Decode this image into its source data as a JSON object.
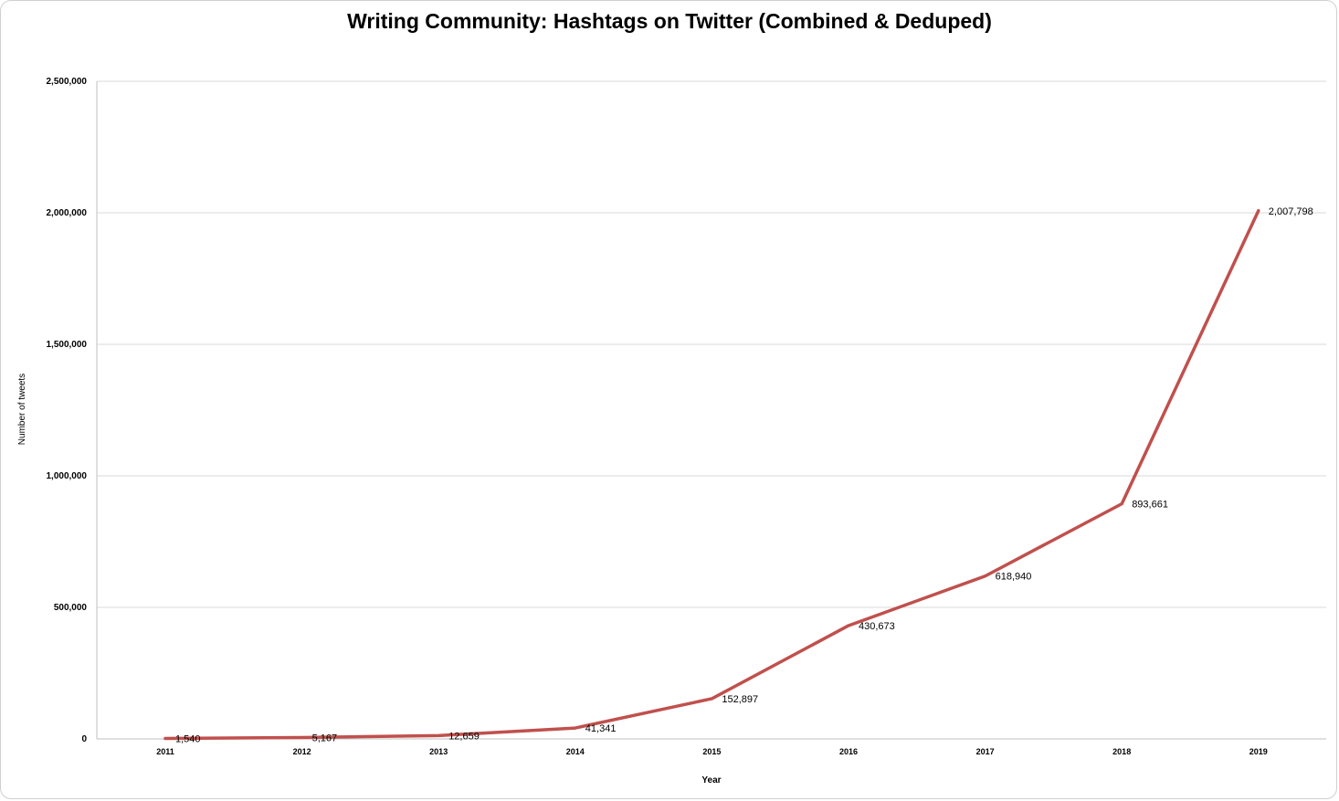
{
  "chart_data": {
    "type": "line",
    "title": "Writing Community: Hashtags on Twitter (Combined & Deduped)",
    "xlabel": "Year",
    "ylabel": "Number of tweets",
    "categories": [
      "2011",
      "2012",
      "2013",
      "2014",
      "2015",
      "2016",
      "2017",
      "2018",
      "2019"
    ],
    "series": [
      {
        "values": [
          1540,
          5167,
          12659,
          41341,
          152897,
          430673,
          618940,
          893661,
          2007798
        ],
        "labels": [
          "1,540",
          "5,167",
          "12,659",
          "41,341",
          "152,897",
          "430,673",
          "618,940",
          "893,661",
          "2,007,798"
        ]
      }
    ],
    "ylim": [
      0,
      2500000
    ],
    "yticks": [
      0,
      500000,
      1000000,
      1500000,
      2000000,
      2500000
    ],
    "ytick_labels": [
      "0",
      "500,000",
      "1,000,000",
      "1,500,000",
      "2,000,000",
      "2,500,000"
    ],
    "grid": true,
    "legend": "none",
    "line_color": "#c0504d",
    "grid_color": "#d9d9d9"
  }
}
